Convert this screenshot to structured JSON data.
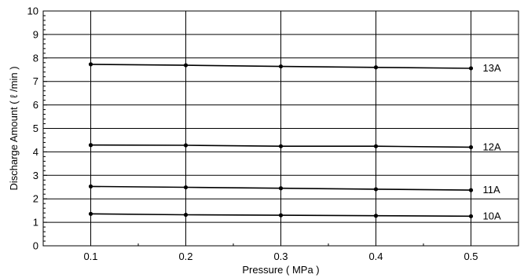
{
  "chart_data": {
    "type": "line",
    "xlabel": "Pressure ( MPa )",
    "ylabel": "Discharge Amount ( ℓ /min )",
    "x": [
      0.1,
      0.2,
      0.3,
      0.4,
      0.5
    ],
    "xlim": [
      0.05,
      0.55
    ],
    "ylim": [
      0,
      10
    ],
    "xticks": [
      "0.1",
      "0.2",
      "0.3",
      "0.4",
      "0.5"
    ],
    "yticks": [
      "0",
      "1",
      "2",
      "3",
      "4",
      "5",
      "6",
      "7",
      "8",
      "9",
      "10"
    ],
    "grid": true,
    "series": [
      {
        "name": "13A",
        "values": [
          7.73,
          7.69,
          7.64,
          7.6,
          7.56
        ]
      },
      {
        "name": "12A",
        "values": [
          4.29,
          4.28,
          4.24,
          4.24,
          4.2
        ]
      },
      {
        "name": "11A",
        "values": [
          2.53,
          2.49,
          2.45,
          2.41,
          2.37
        ]
      },
      {
        "name": "10A",
        "values": [
          1.36,
          1.32,
          1.3,
          1.28,
          1.26
        ]
      }
    ],
    "colors": {
      "line": "#000000",
      "grid": "#000000",
      "background": "#ffffff"
    }
  }
}
